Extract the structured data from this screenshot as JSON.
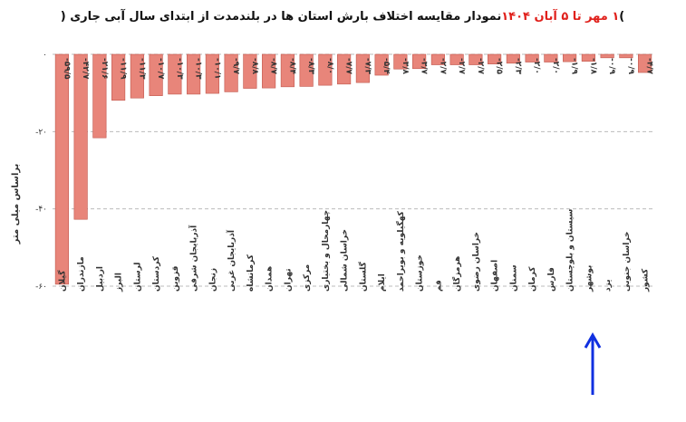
{
  "chart_data": {
    "type": "bar",
    "title": "نمودار مقایسه اختلاف بارش استان ها در بلندمدت از ابتدای سال آبی جاری (",
    "title_highlight": "۱ مهر تا ۵ آبان ۱۴۰۴",
    "title_end": ")",
    "title_highlight_color": "#e0201b",
    "y_label": "براساس میلی متر",
    "categories": [
      "گیلان",
      "مازندران",
      "اردبیل",
      "البرز",
      "لرستان",
      "کردستان",
      "قزوین",
      "آذربایجان شرقی",
      "زنجان",
      "آذربایجان غربی",
      "کرمانشاه",
      "همدان",
      "تهران",
      "مرکزی",
      "چهارمحال و بختیاری",
      "خراسان شمالی",
      "گلستان",
      "ایلام",
      "کهگیلویه و بویراحمد",
      "خوزستان",
      "قم",
      "هرمزگان",
      "خراسان رضوی",
      "اصفهان",
      "سمنان",
      "کرمان",
      "فارس",
      "سیستان و بلوچستان",
      "بوشهر",
      "یزد",
      "خراسان جنوبی",
      "کشور"
    ],
    "values": [
      -59.5,
      -42.7,
      -21.6,
      -11.9,
      -11.3,
      -10.7,
      -10.3,
      -10.3,
      -10.1,
      -9.7,
      -8.8,
      -8.7,
      -8.4,
      -8.3,
      -8.0,
      -7.7,
      -7.3,
      -5.4,
      -3.8,
      -3.7,
      -2.7,
      -2.7,
      -2.7,
      -2.5,
      -2.3,
      -2.0,
      -2.0,
      -1.9,
      -1.8,
      -0.9,
      -0.9,
      -4.7
    ],
    "value_labels": [
      "-۵۹/۵",
      "-۴۲/۷",
      "-۲۱/۶",
      "-۱۱/۹",
      "-۱۱/۳",
      "-۱۰/۷",
      "-۱۰/۳",
      "-۱۰/۳",
      "-۱۰/۱",
      "-۹/۷",
      "-۸/۸",
      "-۸/۷",
      "-۸/۴",
      "-۸/۳",
      "-۸/۰",
      "-۷/۷",
      "-۷/۳",
      "-۵/۴",
      "-۳/۸",
      "-۳/۷",
      "-۲/۷",
      "-۲/۷",
      "-۲/۷",
      "-۲/۵",
      "-۲/۳",
      "-۲/۰",
      "-۲/۰",
      "-۱/۹",
      "-۱/۸",
      "-۰/۹",
      "-۰/۹",
      "-۴/۷"
    ],
    "color": "#e8857a",
    "ylim": [
      -60,
      0
    ],
    "yticks": [
      {
        "value": 0,
        "label": "۰"
      },
      {
        "value": -20,
        "label": "-۲۰"
      },
      {
        "value": -40,
        "label": "-۴۰"
      },
      {
        "value": -60,
        "label": "-۶۰"
      }
    ],
    "grid": true
  }
}
